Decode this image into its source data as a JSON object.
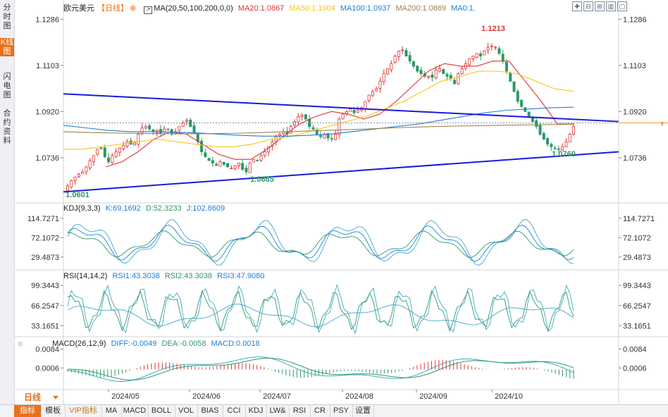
{
  "sidebar": {
    "tabs": [
      {
        "label": "分时图",
        "active": false
      },
      {
        "label": "K线图",
        "active": true
      },
      {
        "label": "闪电图",
        "active": false
      },
      {
        "label": "合约资料",
        "active": false
      }
    ]
  },
  "header": {
    "symbol": "欧元美元",
    "period_tag": "【日线】",
    "ma_label": "MA(20,50,100,200,0,0)",
    "ma20": "MA20:1.0867",
    "ma50": "MA50:1.1004",
    "ma100": "MA100:1.0937",
    "ma200": "MA200:1.0869",
    "ma0": "MA0:1."
  },
  "colors": {
    "up": "#e03131",
    "down": "#2b9a66",
    "ma20": "#e03131",
    "ma50": "#f5c518",
    "ma100": "#1c7ed6",
    "ma200": "#a08050",
    "trend": "#1a1ad9",
    "price_line": "#f08c28",
    "kdj_k": "#1c7ed6",
    "kdj_d": "#2b9a66",
    "kdj_j": "#3fa7c8"
  },
  "panels": {
    "kdj_label": "KDJ(9,3,3)",
    "kdj_k": "K:69.1692",
    "kdj_d": "D:52.3233",
    "kdj_j": "J:102.8609",
    "rsi_label": "RSI(14,14,2)",
    "rsi1": "RSI1:43.3038",
    "rsi2": "RSI2:43.3038",
    "rsi3": "RSI3:47.9080",
    "macd_label": "MACD(26,12,9)",
    "macd_diff": "DIFF:-0.0049",
    "macd_dea": "DEA:-0.0058",
    "macd_macd": "MACD:0.0018"
  },
  "bottom": {
    "period": "日线",
    "tabs": [
      "指标",
      "模板",
      "VIP指标",
      "MA",
      "MACD",
      "BOLL",
      "VOL",
      "BIAS",
      "CCI",
      "KDJ",
      "LW&",
      "RSI",
      "CR",
      "PSY",
      "设置"
    ]
  },
  "chart_data": {
    "type": "candlestick",
    "main_axis": {
      "ticks": [
        "1.1286",
        "1.1103",
        "1.0920",
        "1.0736"
      ],
      "ylim": [
        1.056,
        1.1315
      ]
    },
    "kdj_axis": {
      "ticks": [
        "114.7271",
        "72.1072",
        "29.4873"
      ]
    },
    "rsi_axis": {
      "ticks": [
        "99.3443",
        "66.2547",
        "33.1651"
      ]
    },
    "macd_axis": {
      "ticks": [
        "0.0084",
        "0.0006"
      ]
    },
    "x_labels": [
      "2024/05",
      "2024/06",
      "2024/07",
      "2024/08",
      "2024/09",
      "2024/10"
    ],
    "annotations": [
      {
        "text": "1.0601",
        "value": 1.0601
      },
      {
        "text": "1.0665",
        "value": 1.0665
      },
      {
        "text": "1.1213",
        "value": 1.1213
      },
      {
        "text": "1.0760",
        "value": 1.076
      }
    ],
    "close_path": [
      1.0625,
      1.0645,
      1.066,
      1.067,
      1.068,
      1.07,
      1.0725,
      1.0745,
      1.077,
      1.0775,
      1.074,
      1.072,
      1.0745,
      1.076,
      1.0775,
      1.0785,
      1.08,
      1.079,
      1.0795,
      1.083,
      1.0855,
      1.086,
      1.085,
      1.084,
      1.0845,
      1.0835,
      1.085,
      1.085,
      1.083,
      1.084,
      1.086,
      1.0875,
      1.0885,
      1.086,
      1.0835,
      1.08,
      1.076,
      1.074,
      1.0725,
      1.0715,
      1.0705,
      1.072,
      1.071,
      1.07,
      1.0695,
      1.0705,
      1.0715,
      1.069,
      1.068,
      1.0715,
      1.073,
      1.0725,
      1.0745,
      1.076,
      1.078,
      1.08,
      1.082,
      1.083,
      1.084,
      1.083,
      1.086,
      1.088,
      1.09,
      1.0905,
      1.089,
      1.086,
      1.085,
      1.083,
      1.082,
      1.083,
      1.0815,
      1.081,
      1.083,
      1.089,
      1.091,
      1.092,
      1.093,
      1.0915,
      1.0925,
      1.0935,
      1.096,
      1.0985,
      1.1,
      1.101,
      1.104,
      1.107,
      1.109,
      1.111,
      1.114,
      1.116,
      1.1165,
      1.114,
      1.112,
      1.11,
      1.108,
      1.107,
      1.106,
      1.106,
      1.1055,
      1.1085,
      1.109,
      1.107,
      1.106,
      1.105,
      1.103,
      1.107,
      1.109,
      1.111,
      1.113,
      1.114,
      1.115,
      1.114,
      1.116,
      1.1175,
      1.118,
      1.1175,
      1.115,
      1.112,
      1.108,
      1.104,
      1.1,
      1.096,
      1.094,
      1.092,
      1.09,
      1.088,
      1.086,
      1.083,
      1.081,
      1.079,
      1.078,
      1.0775,
      1.077,
      1.078,
      1.08,
      1.083,
      1.086
    ],
    "ma_series": [
      {
        "name": "MA20",
        "values": [
          1.07,
          1.072,
          1.076,
          1.081,
          1.084,
          1.083,
          1.079,
          1.075,
          1.073,
          1.073,
          1.077,
          1.082,
          1.087,
          1.09,
          1.092,
          1.091,
          1.089,
          1.091,
          1.096,
          1.102,
          1.108,
          1.111,
          1.11,
          1.11,
          1.112,
          1.112,
          1.104,
          1.096,
          1.087,
          1.087
        ]
      },
      {
        "name": "MA50",
        "values": [
          1.077,
          1.077,
          1.078,
          1.079,
          1.08,
          1.081,
          1.08,
          1.079,
          1.078,
          1.078,
          1.079,
          1.081,
          1.082,
          1.084,
          1.086,
          1.088,
          1.09,
          1.093,
          1.096,
          1.1,
          1.104,
          1.106,
          1.108,
          1.108,
          1.107,
          1.104,
          1.101,
          1.1
        ]
      },
      {
        "name": "MA100",
        "values": [
          1.0865,
          1.0855,
          1.0845,
          1.084,
          1.084,
          1.0838,
          1.0835,
          1.083,
          1.0825,
          1.0822,
          1.0822,
          1.0825,
          1.083,
          1.084,
          1.085,
          1.086,
          1.087,
          1.0885,
          1.09,
          1.0915,
          1.0925,
          1.093,
          1.0935,
          1.0937
        ]
      },
      {
        "name": "MA200",
        "values": [
          1.084,
          1.0836,
          1.0834,
          1.0832,
          1.0831,
          1.0832,
          1.0834,
          1.0838,
          1.0842,
          1.0846,
          1.085,
          1.0855,
          1.0859,
          1.0862,
          1.0864,
          1.0866,
          1.0868,
          1.0869
        ]
      }
    ],
    "trend_lines": [
      {
        "from": [
          0,
          1.099
        ],
        "to": [
          1,
          1.088
        ]
      },
      {
        "from": [
          0,
          1.0601
        ],
        "to": [
          1,
          1.076
        ]
      }
    ],
    "kdj": {
      "ylim": [
        0,
        130
      ]
    },
    "rsi": {
      "ylim": [
        15,
        110
      ]
    },
    "macd": {
      "ylim": [
        -0.008,
        0.01
      ]
    }
  }
}
